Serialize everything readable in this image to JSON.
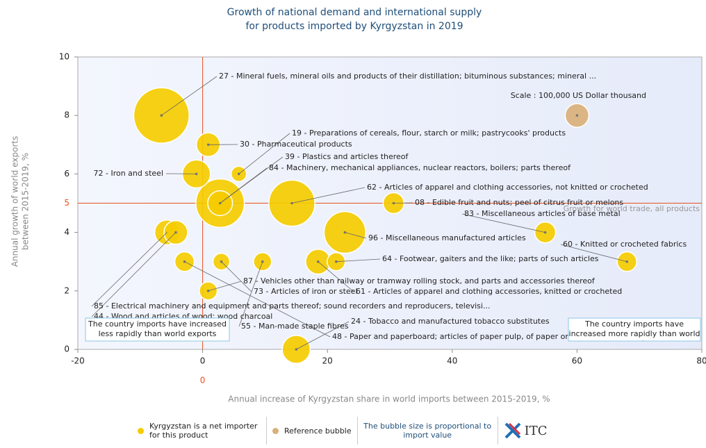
{
  "chart_data": {
    "type": "bubble",
    "title_lines": [
      "Growth of national demand and international supply",
      "for products imported by Kyrgyzstan in 2019"
    ],
    "xlabel": "Annual increase of Kyrgyzstan share in world imports between 2015-2019, %",
    "ylabel_lines": [
      "Annual growth of world exports",
      "between 2015-2019, %"
    ],
    "xlim": [
      -20,
      80
    ],
    "xticks": [
      -20,
      0,
      20,
      40,
      60,
      80
    ],
    "ylim": [
      0,
      10
    ],
    "yticks": [
      0,
      2,
      4,
      6,
      8,
      10
    ],
    "reference_x": 0,
    "reference_y": 5,
    "reference_color": "#e8501e",
    "reference_y_note": "Growth for world trade, all products",
    "scale_note": "Scale : 100,000 US Dollar thousand",
    "box_left": "The country imports have increased less rapidly than world exports",
    "box_right": "The country imports have increased more rapidly than world exports",
    "size_legend": "The bubble size is proportional to import value",
    "logo_text": "ITC",
    "series": [
      {
        "name": "Kyrgyzstan is a net importer for this product",
        "color": "#f5cc00",
        "labels": [
          "27 - Mineral fuels, mineral oils and products of their distillation; bituminous substances; mineral ...",
          "84 - Machinery, mechanical appliances, nuclear reactors, boilers; parts thereof",
          "62 - Articles of apparel and clothing accessories, not knitted or crocheted",
          "96 - Miscellaneous manufactured articles",
          "72 - Iron and steel",
          "24 - Tobacco and manufactured tobacco substitutes",
          "39 - Plastics and articles thereof",
          "61 - Articles of apparel and clothing accessories, knitted or crocheted",
          "85 - Electrical machinery and equipment and parts thereof; sound recorders and reproducers, televisi...",
          "30 - Pharmaceutical products",
          "44 - Wood and articles of wood; wood charcoal",
          "08 - Edible fruit and nuts; peel of citrus fruit or melons",
          "83 - Miscellaneous articles of base metal",
          "60 - Knitted or crocheted fabrics",
          "48 - Paper and paperboard; articles of paper pulp, of paper or of paperboard",
          "64 - Footwear, gaiters and the like; parts of such articles",
          "87 - Vehicles other than railway or tramway rolling stock, and parts and accessories thereof",
          "55 - Man-made staple fibres",
          "73 - Articles of iron or steel",
          "19 - Preparations of cereals, flour, starch or milk; pastrycooks' products"
        ],
        "x": [
          -6.6,
          2.8,
          14.3,
          22.8,
          -1,
          15,
          2.8,
          18.5,
          -5.7,
          0.9,
          -4.3,
          30.6,
          54.9,
          68,
          -2.9,
          21.4,
          0.9,
          9.6,
          3,
          5.8
        ],
        "values": [
          8,
          5,
          5,
          4,
          6,
          0,
          5,
          3,
          4,
          7,
          4,
          5,
          4,
          3,
          3,
          3,
          2,
          3,
          3,
          6
        ],
        "size": [
          550000,
          420000,
          380000,
          310000,
          140000,
          140000,
          110000,
          110000,
          110000,
          100000,
          100000,
          78000,
          78000,
          68000,
          68000,
          58000,
          58000,
          58000,
          50000,
          42000
        ]
      },
      {
        "name": "Reference bubble",
        "color": "#d9b07a",
        "x": [
          60
        ],
        "values": [
          8
        ],
        "size": [
          100000
        ]
      }
    ]
  }
}
